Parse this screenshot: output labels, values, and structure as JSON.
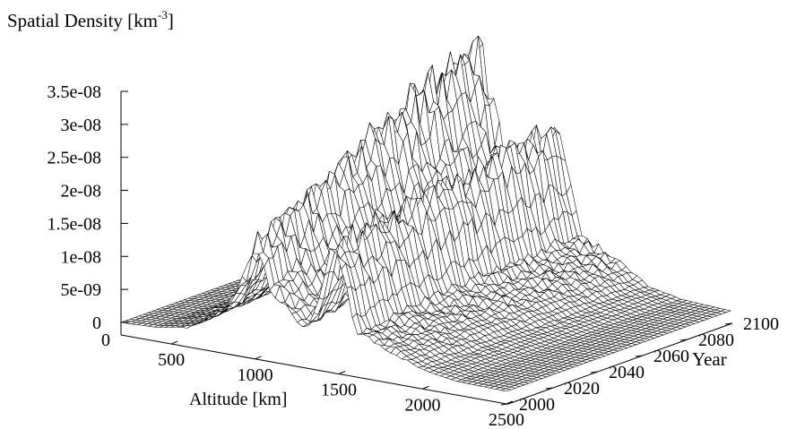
{
  "chart_data": {
    "type": "surface",
    "title": "Spatial Density [km",
    "title_sup": "-3",
    "title_end": "]",
    "xlabel": "Altitude [km]",
    "ylabel": "Year",
    "x_ticks": [
      "500",
      "1000",
      "1500",
      "2000",
      "2500"
    ],
    "y_ticks": [
      "2000",
      "2020",
      "2040",
      "2060",
      "2080",
      "2100"
    ],
    "z_ticks": [
      "0",
      "5e-09",
      "1e-08",
      "1.5e-08",
      "2e-08",
      "2.5e-08",
      "3e-08",
      "3.5e-08"
    ],
    "x_range": [
      200,
      2500
    ],
    "y_range": [
      2000,
      2100
    ],
    "z_range": [
      0,
      3.5e-08
    ],
    "base_label": "0",
    "grid": false,
    "legend": "none",
    "line_color": "#000000",
    "surface_color": "#ffffff",
    "series": [
      {
        "year": 2000,
        "profile": {
          "altitude_km": [
            200,
            400,
            600,
            800,
            850,
            900,
            1000,
            1100,
            1200,
            1300,
            1400,
            1450,
            1500,
            1600,
            1700,
            1800,
            2000,
            2200,
            2500
          ],
          "density": [
            0,
            2e-10,
            1e-09,
            4e-09,
            6e-09,
            8e-09,
            1.6e-08,
            9e-09,
            6e-09,
            4e-09,
            9e-09,
            1.7e-08,
            1.5e-08,
            5e-09,
            4e-09,
            3e-09,
            1e-09,
            2e-10,
            0
          ]
        }
      },
      {
        "year": 2050,
        "profile": {
          "altitude_km": [
            200,
            400,
            600,
            800,
            850,
            900,
            1000,
            1100,
            1200,
            1300,
            1400,
            1450,
            1500,
            1600,
            1700,
            1800,
            2000,
            2200,
            2500
          ],
          "density": [
            0,
            4e-10,
            2e-09,
            9e-09,
            1.2e-08,
            1.5e-08,
            2.6e-08,
            1.5e-08,
            1e-08,
            7e-09,
            1.3e-08,
            2e-08,
            1.9e-08,
            7e-09,
            5e-09,
            4e-09,
            1.3e-09,
            3e-10,
            0
          ]
        }
      },
      {
        "year": 2100,
        "profile": {
          "altitude_km": [
            200,
            400,
            600,
            800,
            850,
            900,
            1000,
            1100,
            1200,
            1300,
            1400,
            1450,
            1500,
            1600,
            1700,
            1800,
            2000,
            2200,
            2500
          ],
          "density": [
            0,
            6e-10,
            3e-09,
            1.5e-08,
            2e-08,
            2.5e-08,
            3.5e-08,
            2.2e-08,
            1.4e-08,
            1e-08,
            1.6e-08,
            2.3e-08,
            2.1e-08,
            8e-09,
            6e-09,
            5e-09,
            1.6e-09,
            4e-10,
            0
          ]
        }
      }
    ]
  }
}
